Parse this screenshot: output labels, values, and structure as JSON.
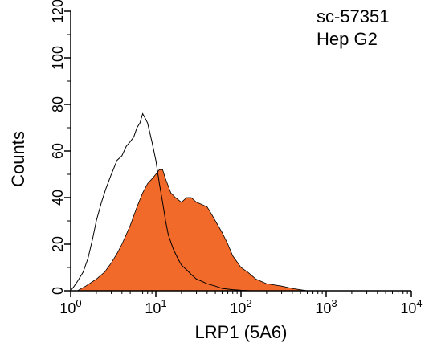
{
  "chart_data": {
    "type": "area",
    "title": "",
    "xlabel": "LRP1 (5A6)",
    "ylabel": "Counts",
    "xscale": "log",
    "xlim": [
      1,
      10000
    ],
    "ylim": [
      0,
      120
    ],
    "x_ticks": [
      {
        "value": 1,
        "base": "10",
        "exp": "0"
      },
      {
        "value": 10,
        "base": "10",
        "exp": "1"
      },
      {
        "value": 100,
        "base": "10",
        "exp": "2"
      },
      {
        "value": 1000,
        "base": "10",
        "exp": "3"
      },
      {
        "value": 10000,
        "base": "10",
        "exp": "4"
      }
    ],
    "y_ticks": [
      "0",
      "20",
      "40",
      "60",
      "80",
      "100",
      "120"
    ],
    "annotations": [
      "sc-57351",
      "Hep G2"
    ],
    "grid": false,
    "series": [
      {
        "style": "outline",
        "color": "#000000",
        "x": [
          1.0,
          1.1,
          1.2,
          1.4,
          1.6,
          1.8,
          2.0,
          2.3,
          2.6,
          3.0,
          3.5,
          4.0,
          4.5,
          5.0,
          5.5,
          6.0,
          6.5,
          7.0,
          7.5,
          8.0,
          9.0,
          10.0,
          11.0,
          12.0,
          13.0,
          14.0,
          16.0,
          18.0,
          20.0,
          23.0,
          26.0,
          30.0,
          35.0,
          40.0,
          50.0,
          60.0,
          80.0,
          100.0,
          130.0
        ],
        "y": [
          0,
          2,
          4,
          8,
          14,
          22,
          30,
          38,
          44,
          50,
          56,
          58,
          62,
          64,
          66,
          70,
          72,
          76,
          74,
          72,
          64,
          56,
          46,
          38,
          30,
          24,
          18,
          14,
          11,
          9,
          7,
          5,
          4,
          3,
          2,
          1,
          0.5,
          0.2,
          0
        ]
      },
      {
        "style": "filled",
        "color": "#f26a2a",
        "x": [
          1.2,
          1.5,
          2.0,
          2.5,
          3.0,
          3.5,
          4.0,
          5.0,
          6.0,
          7.0,
          8.0,
          9.0,
          10.0,
          11.0,
          12.0,
          13.0,
          15.0,
          17.0,
          20.0,
          23.0,
          26.0,
          30.0,
          35.0,
          40.0,
          45.0,
          50.0,
          60.0,
          70.0,
          80.0,
          100.0,
          120.0,
          150.0,
          200.0,
          300.0,
          400.0,
          600.0
        ],
        "y": [
          0,
          2,
          5,
          8,
          12,
          16,
          20,
          28,
          36,
          42,
          46,
          48,
          50,
          52,
          52,
          48,
          42,
          40,
          38,
          40,
          40,
          38,
          37,
          36,
          33,
          30,
          25,
          20,
          15,
          10,
          8,
          5,
          3,
          2,
          1,
          0
        ]
      }
    ]
  }
}
